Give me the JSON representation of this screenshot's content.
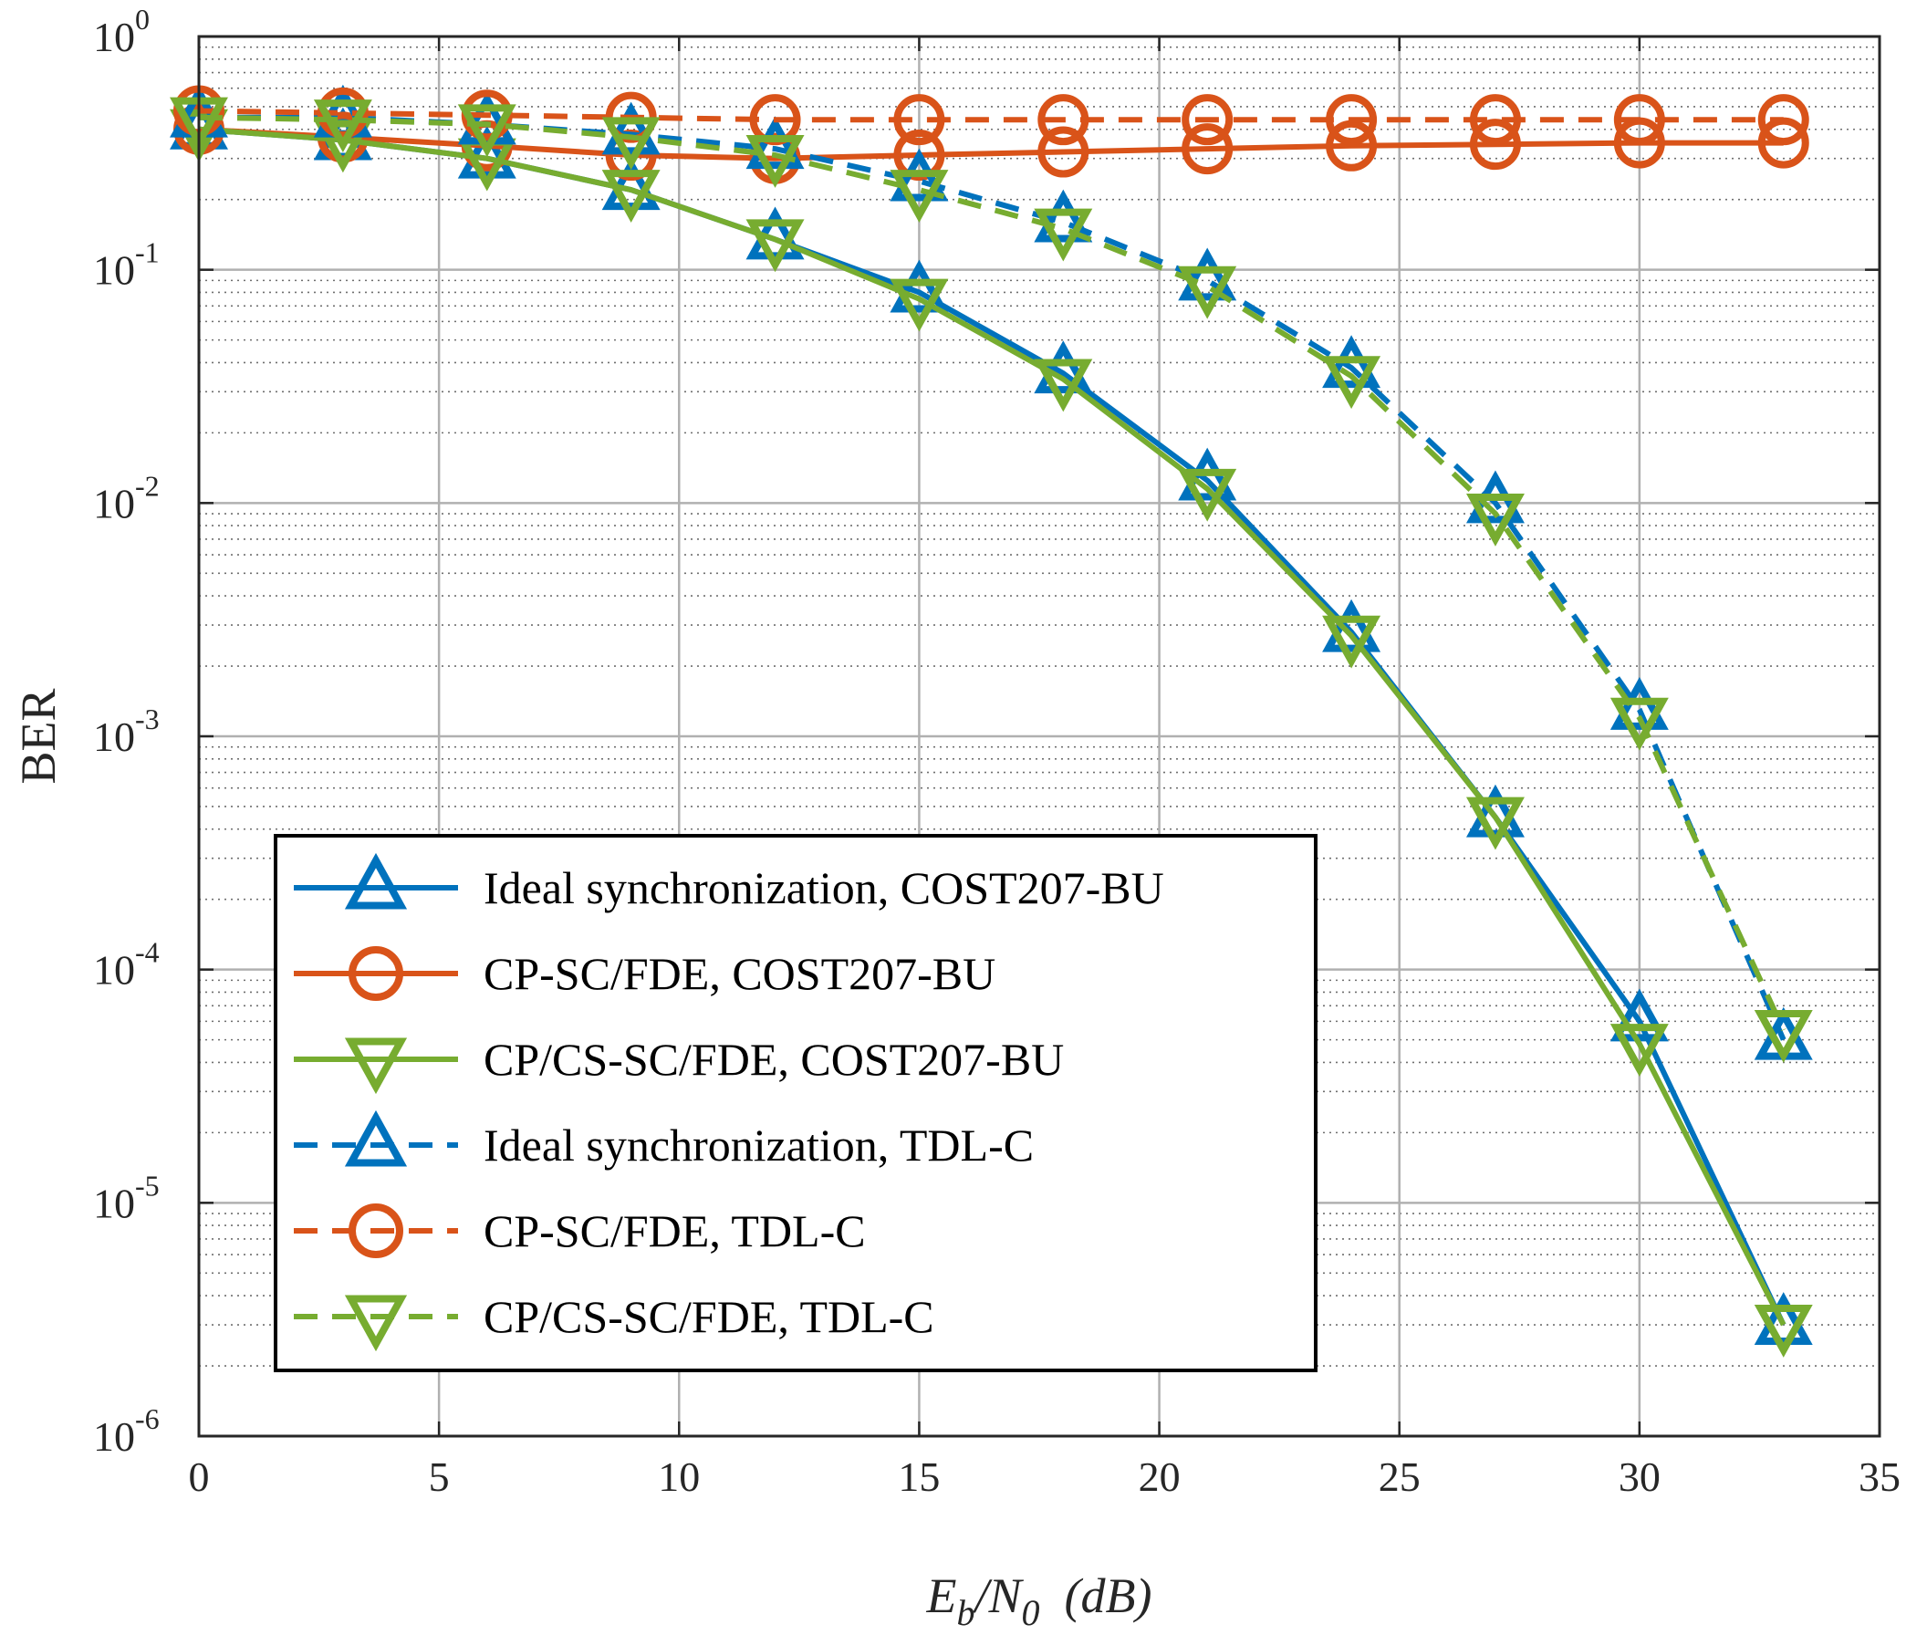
{
  "chart_data": {
    "type": "line",
    "title": "",
    "xlabel": "E_b/N_0 (dB)",
    "xlabel_parts": {
      "base1": "E",
      "sub1": "b",
      "mid": "/N",
      "sub2": "0",
      "tail": "  (dB)"
    },
    "ylabel": "BER",
    "xlim": [
      0,
      35
    ],
    "ylim": [
      1e-06,
      1
    ],
    "yscale": "log",
    "grid": true,
    "minor_grid": true,
    "legend_position": "bottom-left",
    "x_ticks": [
      0,
      5,
      10,
      15,
      20,
      25,
      30,
      35
    ],
    "x_tick_labels": [
      "0",
      "5",
      "10",
      "15",
      "20",
      "25",
      "30",
      "35"
    ],
    "y_ticks": [
      {
        "value": 1,
        "base": "10",
        "exp": "0"
      },
      {
        "value": 0.1,
        "base": "10",
        "exp": "-1"
      },
      {
        "value": 0.01,
        "base": "10",
        "exp": "-2"
      },
      {
        "value": 0.001,
        "base": "10",
        "exp": "-3"
      },
      {
        "value": 0.0001,
        "base": "10",
        "exp": "-4"
      },
      {
        "value": 1e-05,
        "base": "10",
        "exp": "-5"
      },
      {
        "value": 1e-06,
        "base": "10",
        "exp": "-6"
      }
    ],
    "x": [
      0,
      3,
      6,
      9,
      12,
      15,
      18,
      21,
      24,
      27,
      30,
      33
    ],
    "series": [
      {
        "name": "Ideal synchronization,  COST207-BU",
        "color": "#0072BD",
        "marker": "triangle-up",
        "dash": "solid",
        "values": [
          0.4,
          0.36,
          0.3,
          0.22,
          0.135,
          0.08,
          0.036,
          0.0125,
          0.0028,
          0.00045,
          6e-05,
          3e-06
        ]
      },
      {
        "name": "CP-SC/FDE,  COST207-BU",
        "color": "#D95319",
        "marker": "circle",
        "dash": "solid",
        "values": [
          0.4,
          0.37,
          0.34,
          0.31,
          0.3,
          0.31,
          0.32,
          0.33,
          0.34,
          0.345,
          0.35,
          0.35
        ]
      },
      {
        "name": "CP/CS-SC/FDE,  COST207-BU",
        "color": "#77AC30",
        "marker": "triangle-down",
        "dash": "solid",
        "values": [
          0.4,
          0.36,
          0.3,
          0.22,
          0.135,
          0.075,
          0.034,
          0.0115,
          0.0027,
          0.00045,
          4.8e-05,
          3e-06
        ]
      },
      {
        "name": "Ideal synchronization,  TDL-C",
        "color": "#0072BD",
        "marker": "triangle-up",
        "dash": "dashed",
        "values": [
          0.45,
          0.45,
          0.42,
          0.38,
          0.33,
          0.24,
          0.16,
          0.09,
          0.038,
          0.01,
          0.0013,
          5e-05
        ]
      },
      {
        "name": "CP-SC/FDE, TDL-C",
        "color": "#D95319",
        "marker": "circle",
        "dash": "dashed",
        "values": [
          0.48,
          0.47,
          0.46,
          0.45,
          0.44,
          0.44,
          0.44,
          0.44,
          0.44,
          0.44,
          0.44,
          0.44
        ]
      },
      {
        "name": "CP/CS-SC/FDE,  TDL-C",
        "color": "#77AC30",
        "marker": "triangle-down",
        "dash": "dashed",
        "values": [
          0.45,
          0.44,
          0.42,
          0.37,
          0.31,
          0.22,
          0.15,
          0.085,
          0.035,
          0.009,
          0.0012,
          5.5e-05
        ]
      }
    ]
  }
}
